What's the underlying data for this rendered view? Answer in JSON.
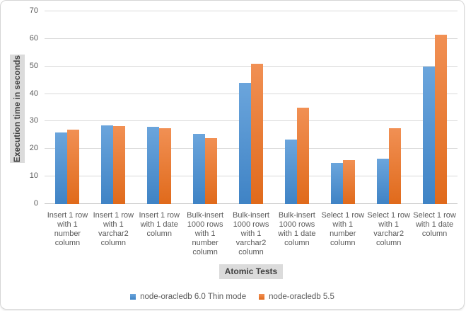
{
  "chart_data": {
    "type": "bar",
    "title": "",
    "xlabel": "Atomic Tests",
    "ylabel": "Execution time in seconds",
    "ylim": [
      0,
      70
    ],
    "yticks": [
      0,
      10,
      20,
      30,
      40,
      50,
      60,
      70
    ],
    "grid": true,
    "legend_position": "bottom",
    "categories": [
      "Insert 1 row with 1 number column",
      "Insert 1 row with 1 varchar2 column",
      "Insert 1 row with 1 date column",
      "Bulk-insert 1000 rows with 1 number column",
      "Bulk-insert 1000 rows with 1 varchar2 column",
      "Bulk-insert 1000 rows with 1 date column",
      "Select 1 row with 1 number column",
      "Select 1 row with 1 varchar2 column",
      "Select 1 row with 1 date column"
    ],
    "series": [
      {
        "name": "node-oracledb 6.0 Thin mode",
        "color": "#5b9bd5",
        "gradient_top": "#6ba5dc",
        "gradient_bottom": "#3f83c5",
        "values": [
          26,
          28.5,
          28,
          25.5,
          44,
          23.5,
          15,
          16.5,
          50
        ]
      },
      {
        "name": "node-oracledb 5.5",
        "color": "#ed7d31",
        "gradient_top": "#f19054",
        "gradient_bottom": "#e06a1b",
        "values": [
          27,
          28.4,
          27.5,
          24,
          51,
          35,
          16,
          27.5,
          61.5
        ]
      }
    ],
    "colors": {
      "gridline": "#d9d9d9",
      "axis_text": "#595959",
      "axis_title_text": "#404040",
      "axis_title_bg": "#dbdbdb",
      "frame_border": "#d6d6d6",
      "background": "#ffffff"
    }
  }
}
